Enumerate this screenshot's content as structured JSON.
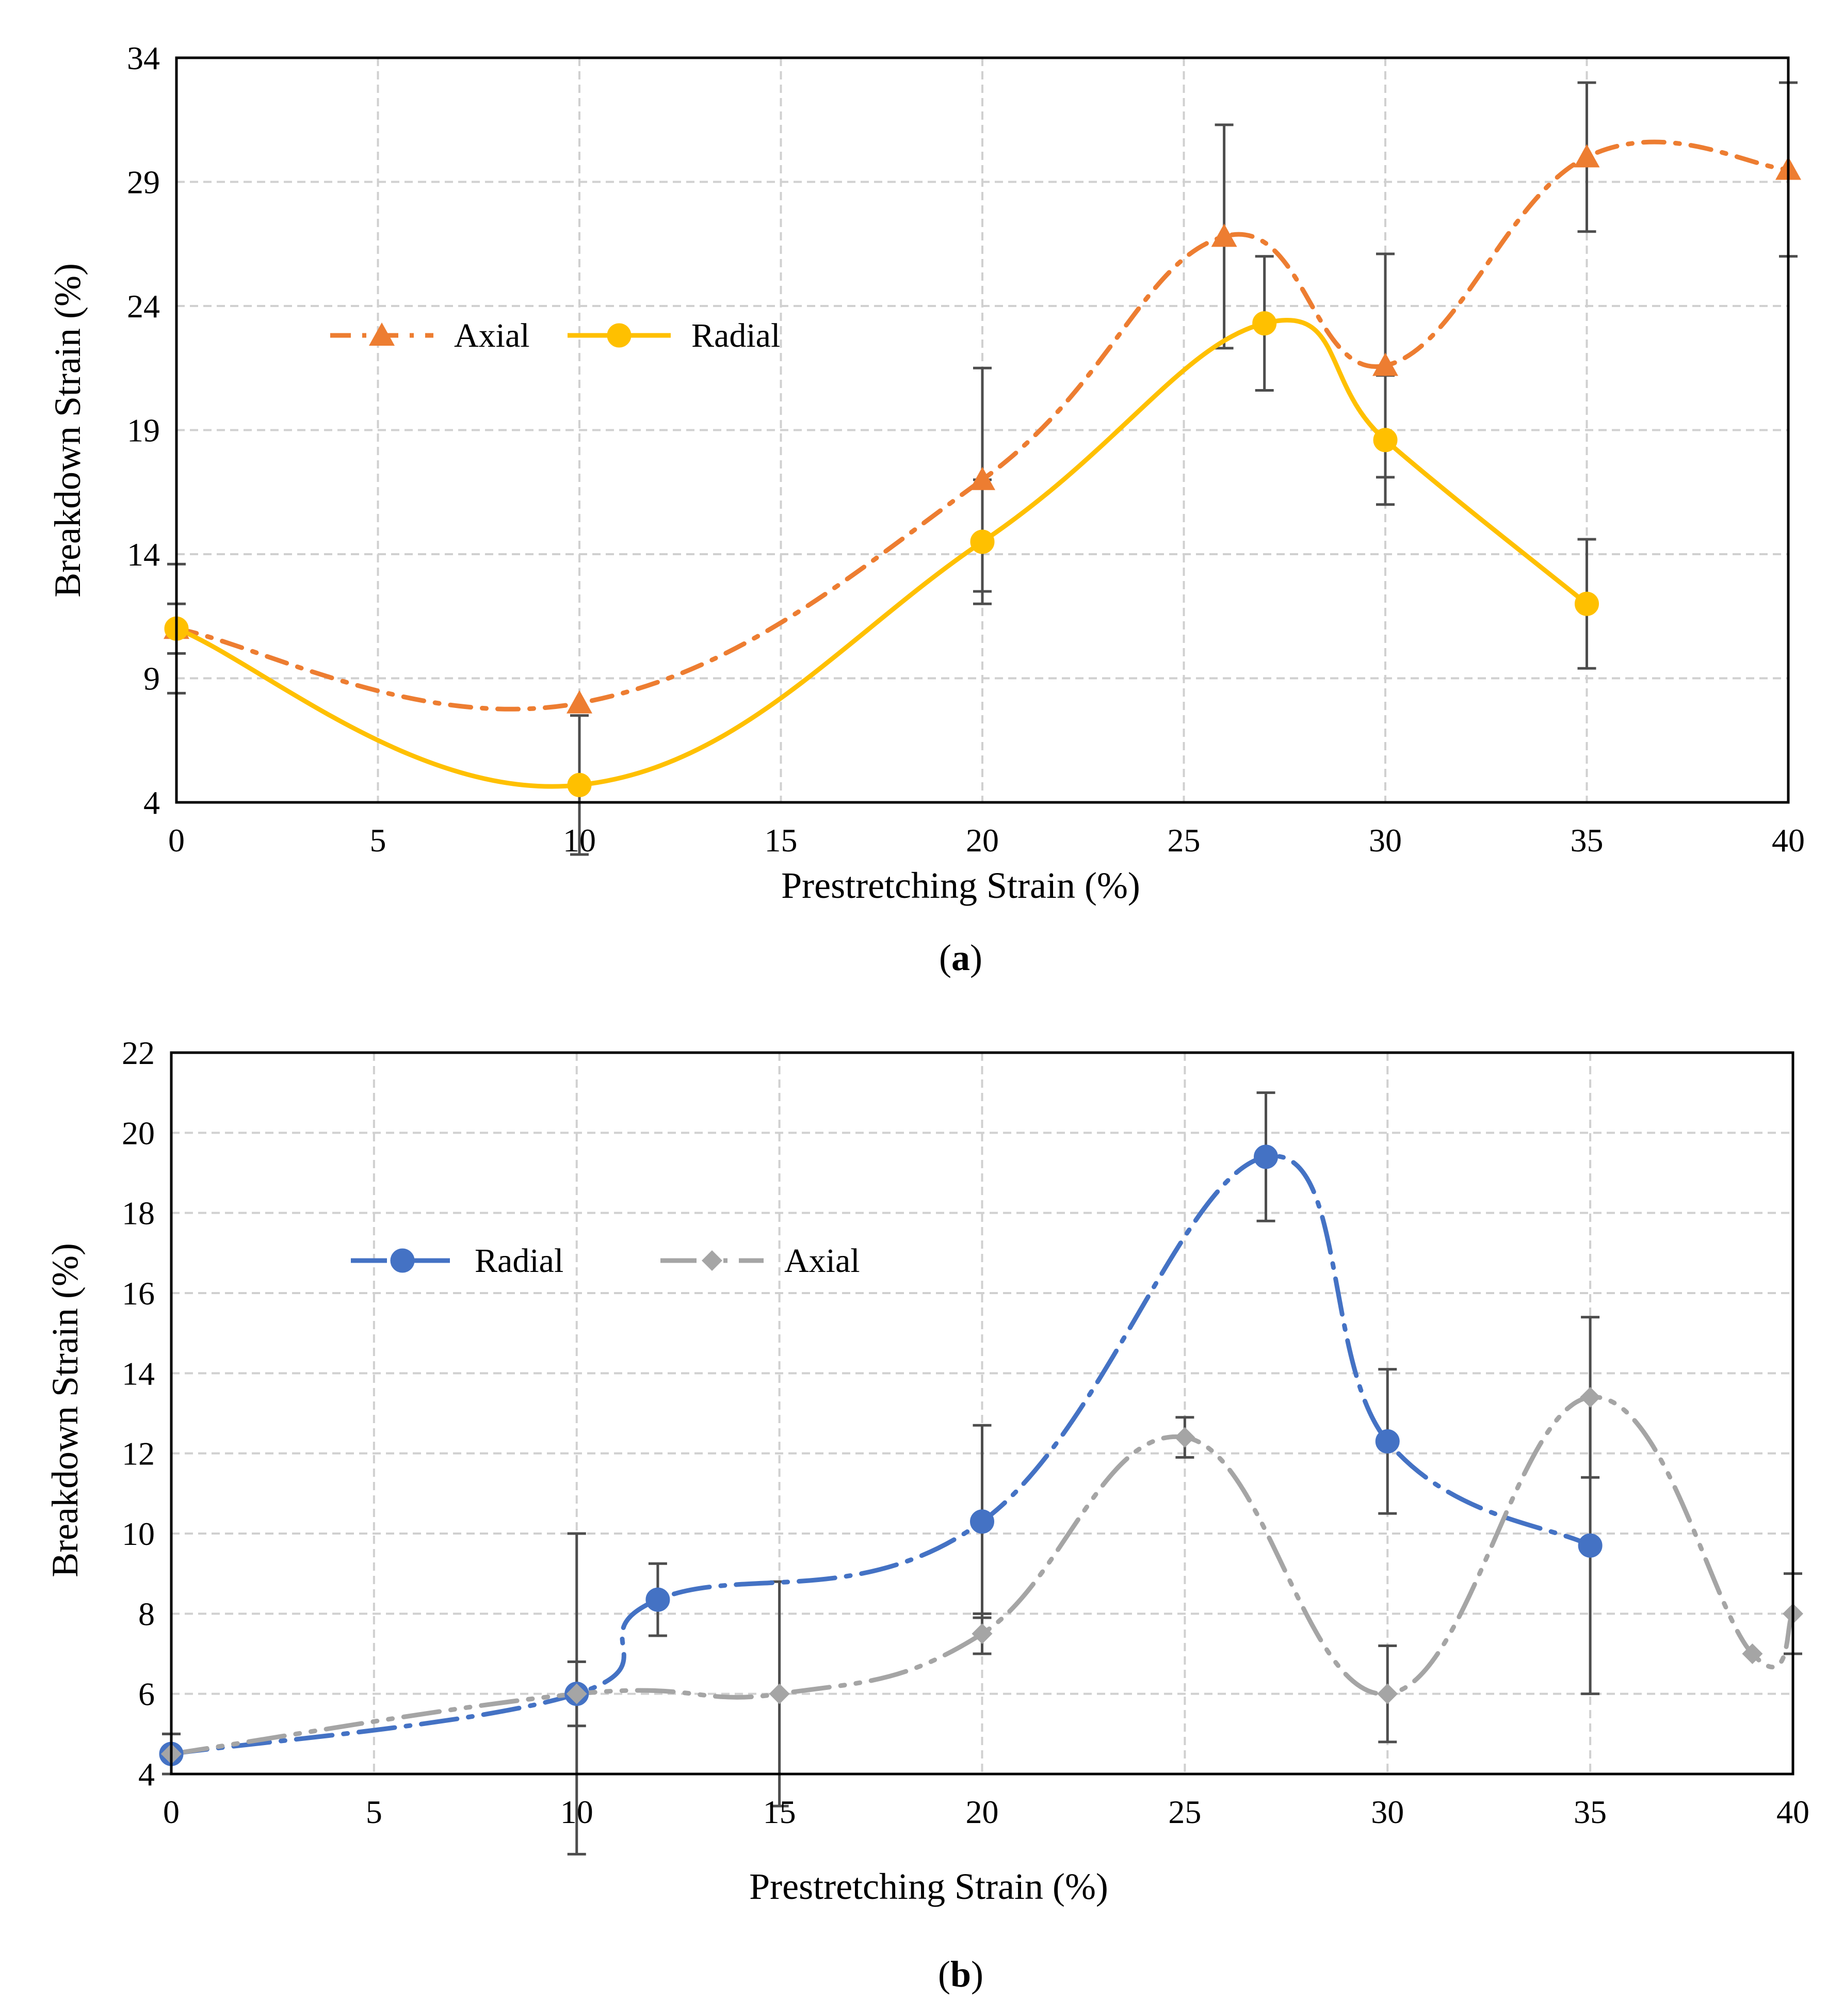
{
  "chart_data": [
    {
      "type": "line",
      "panel_label": "a",
      "title": "",
      "xlabel": "Prestretching Strain (%)",
      "ylabel": "Breakdown Strain (%)",
      "xlim": [
        0,
        40
      ],
      "ylim": [
        4,
        34
      ],
      "xticks": [
        0,
        5,
        10,
        15,
        20,
        25,
        30,
        35,
        40
      ],
      "yticks": [
        4,
        9,
        14,
        19,
        24,
        29,
        34
      ],
      "grid": true,
      "legend_position": "upper-left",
      "series": [
        {
          "name": "Axial",
          "color": "#ED7D31",
          "marker": "triangle",
          "line_style": "dash-dot",
          "x": [
            0,
            10,
            20,
            26,
            30,
            35,
            40
          ],
          "y": [
            11,
            8,
            17,
            26.8,
            21.6,
            30,
            29.5
          ],
          "err": [
            1,
            0,
            4.5,
            4.5,
            4.5,
            3,
            3.5
          ]
        },
        {
          "name": "Radial",
          "color": "#FFC000",
          "marker": "circle",
          "line_style": "solid",
          "x": [
            0,
            10,
            20,
            27,
            30,
            35
          ],
          "y": [
            11,
            4.7,
            14.5,
            23.3,
            18.6,
            12
          ],
          "err": [
            2.6,
            2.8,
            2.5,
            2.7,
            2.6,
            2.6
          ]
        }
      ]
    },
    {
      "type": "line",
      "panel_label": "b",
      "title": "",
      "xlabel": "Prestretching Strain (%)",
      "ylabel": "Breakdown Strain (%)",
      "xlim": [
        0,
        40
      ],
      "ylim": [
        4,
        22
      ],
      "xticks": [
        0,
        5,
        10,
        15,
        20,
        25,
        30,
        35,
        40
      ],
      "yticks": [
        4,
        6,
        8,
        10,
        12,
        14,
        16,
        18,
        20,
        22
      ],
      "grid": true,
      "legend_position": "upper-left",
      "series": [
        {
          "name": "Radial",
          "color": "#4472C4",
          "marker": "circle",
          "line_style": "long-dash-dot",
          "x": [
            0,
            10,
            12,
            20,
            27,
            30,
            35
          ],
          "y": [
            4.5,
            6,
            8.35,
            10.3,
            19.4,
            12.3,
            9.7
          ],
          "err": [
            0.5,
            4,
            0.9,
            2.4,
            1.6,
            1.8,
            3.7
          ]
        },
        {
          "name": "Axial",
          "color": "#A5A5A5",
          "marker": "diamond",
          "line_style": "long-dash-dot-dot",
          "x": [
            0,
            10,
            15,
            20,
            25,
            30,
            35,
            39,
            40
          ],
          "y": [
            4.5,
            6,
            6,
            7.5,
            12.4,
            6,
            13.4,
            7,
            8
          ],
          "err": [
            0.5,
            0.8,
            2.8,
            0.5,
            0.5,
            1.2,
            2,
            0,
            1
          ]
        }
      ]
    }
  ]
}
